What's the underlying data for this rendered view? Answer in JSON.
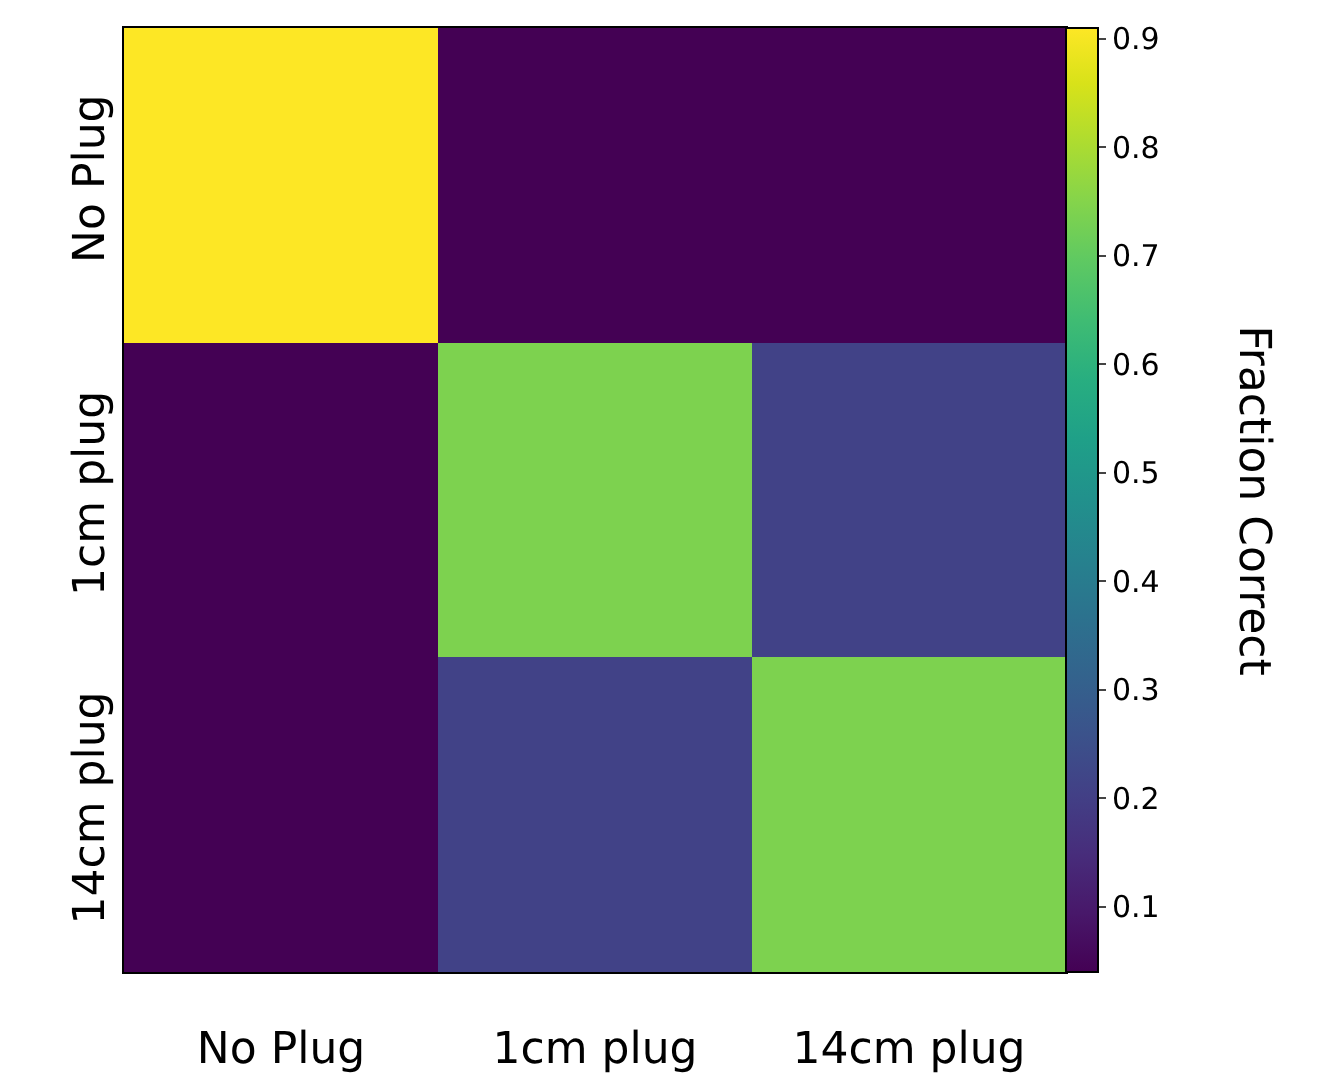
{
  "chart_data": {
    "type": "heatmap",
    "categories": [
      "No Plug",
      "1cm plug",
      "14cm plug"
    ],
    "y_categories": [
      "No Plug",
      "1cm plug",
      "14cm plug"
    ],
    "cells": [
      [
        0.91,
        0.04,
        0.04
      ],
      [
        0.04,
        0.74,
        0.21
      ],
      [
        0.04,
        0.21,
        0.74
      ]
    ],
    "clim": [
      0.04,
      0.91
    ],
    "cticks": [
      0.1,
      0.2,
      0.3,
      0.4,
      0.5,
      0.6,
      0.7,
      0.8,
      0.9
    ],
    "clabel": "Fraction Correct"
  }
}
